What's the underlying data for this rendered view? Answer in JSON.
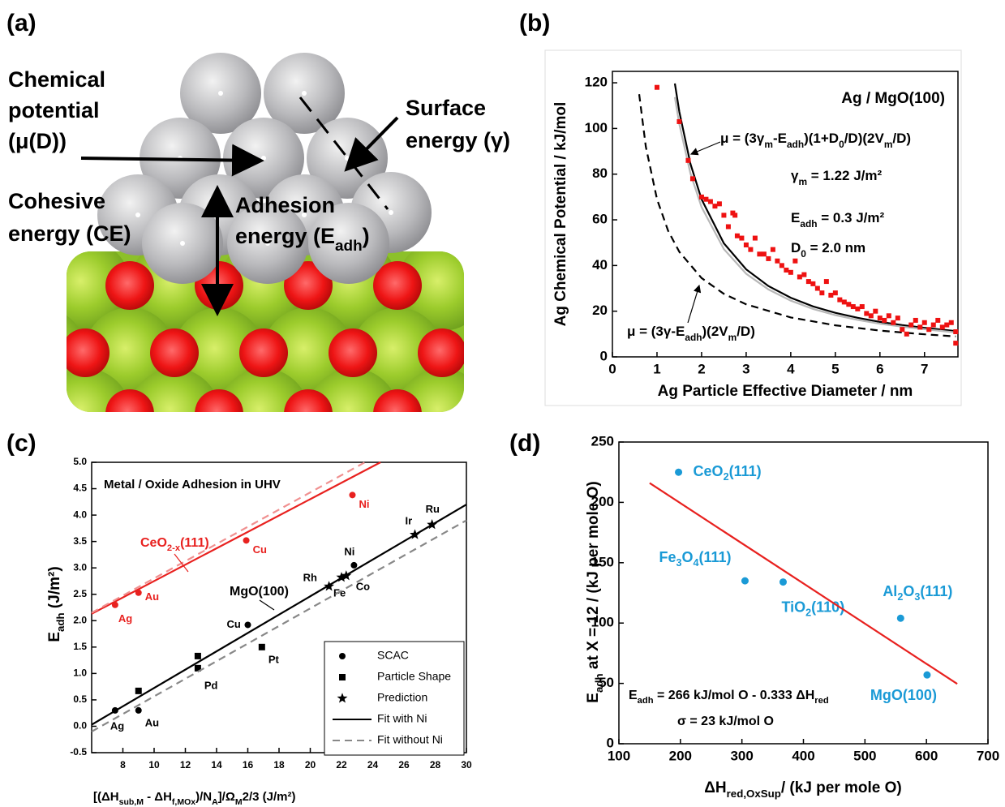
{
  "diagram": {
    "label": "(a)",
    "chemical": [
      "Chemical",
      "potential",
      "(μ(D))"
    ],
    "surface": [
      "Surface",
      "energy (γ)"
    ],
    "cohesive": [
      "Cohesive",
      "energy (CE)"
    ],
    "adhesion": [
      "Adhesion",
      [
        "energy (E",
        "adh",
        ")"
      ]
    ]
  },
  "chart_data": [
    {
      "type": "scatter",
      "label": "(b)",
      "title": "Ag / MgO(100)",
      "xlabel": "Ag Particle Effective Diameter / nm",
      "ylabel": "Ag Chemical Potential / kJ/mol",
      "xlim": [
        0,
        7.75
      ],
      "ylim": [
        0,
        125
      ],
      "xticks": [
        0,
        1,
        2,
        3,
        4,
        5,
        6,
        7
      ],
      "yticks": [
        0,
        20,
        40,
        60,
        80,
        100,
        120
      ],
      "annotations": [
        [
          "μ = (3γ",
          "m",
          "-E",
          "adh",
          ")(1+D",
          "0",
          "/D)(2V",
          "m",
          "/D)"
        ],
        [
          "γ",
          "m",
          " = 1.22 J/m²"
        ],
        [
          "E",
          "adh",
          " = 0.3 J/m²"
        ],
        [
          "D",
          "0",
          " = 2.0 nm"
        ],
        [
          "μ = (3γ-E",
          "adh",
          ")(2V",
          "m",
          "/D)"
        ]
      ],
      "series": [
        {
          "type": "line",
          "color": "#000000",
          "line_style": "solid",
          "x": [
            1.4,
            1.5,
            1.75,
            2,
            2.5,
            3,
            3.5,
            4,
            4.5,
            5,
            5.5,
            6,
            6.5,
            7,
            7.7
          ],
          "values": [
            119.7,
            107.3,
            84.5,
            69,
            49.7,
            38.3,
            31,
            25.9,
            22.1,
            19.3,
            17.1,
            15.3,
            13.9,
            12.7,
            11.3
          ]
        },
        {
          "type": "line",
          "color": "#b8b8b8",
          "line_style": "solid",
          "x": [
            1.4,
            1.5,
            1.75,
            2,
            2.5,
            3,
            3.5,
            4,
            4.5,
            5,
            5.5,
            6,
            6.5,
            7,
            7.7
          ],
          "values": [
            113.7,
            101.9,
            80.3,
            65.6,
            47.2,
            36.4,
            29.5,
            24.6,
            21,
            18.3,
            16.2,
            14.5,
            13.2,
            12.1,
            10.7
          ]
        },
        {
          "type": "line",
          "color": "#000000",
          "line_style": "dashed",
          "x": [
            0.6,
            0.75,
            1,
            1.25,
            1.5,
            2,
            2.5,
            3,
            4,
            5,
            6,
            7,
            7.7
          ],
          "values": [
            115,
            92,
            69,
            55.2,
            46,
            34.5,
            27.6,
            23,
            17.25,
            13.8,
            11.5,
            9.86,
            8.96
          ]
        },
        {
          "type": "scatter",
          "color": "#ee1111",
          "marker": "square",
          "x": [
            1.0,
            1.5,
            1.7,
            1.8,
            2.0,
            2.1,
            2.2,
            2.3,
            2.4,
            2.5,
            2.6,
            2.7,
            2.75,
            2.8,
            2.9,
            3.0,
            3.1,
            3.2,
            3.3,
            3.4,
            3.5,
            3.6,
            3.7,
            3.8,
            3.9,
            4.0,
            4.1,
            4.2,
            4.3,
            4.4,
            4.5,
            4.6,
            4.7,
            4.8,
            4.9,
            5.0,
            5.1,
            5.2,
            5.3,
            5.4,
            5.5,
            5.6,
            5.7,
            5.8,
            5.9,
            6.0,
            6.1,
            6.2,
            6.3,
            6.4,
            6.5,
            6.6,
            6.7,
            6.8,
            6.9,
            7.0,
            7.1,
            7.2,
            7.3,
            7.4,
            7.5,
            7.6,
            7.7,
            7.7
          ],
          "values": [
            118,
            103,
            86,
            78,
            70,
            69,
            68,
            66,
            67,
            62,
            57,
            63,
            62,
            53,
            52,
            49,
            47,
            52,
            45,
            45,
            43,
            47,
            42,
            40,
            38,
            37,
            42,
            35,
            36,
            33,
            32,
            30,
            28,
            33,
            27,
            28,
            25,
            24,
            23,
            22,
            21,
            22,
            19,
            18,
            20,
            17,
            16,
            18,
            15,
            17,
            12,
            10,
            14,
            16,
            13,
            15,
            12,
            14,
            16,
            13,
            14,
            15,
            6,
            11
          ]
        }
      ]
    },
    {
      "type": "scatter",
      "label": "(c)",
      "title": "Metal / Oxide Adhesion in UHV",
      "xlabel": [
        "[(ΔH",
        "sub,M",
        " - ΔH",
        "f,MOx",
        ")/N",
        "A",
        "]/Ω",
        "M",
        "2/3   (J/m²)"
      ],
      "ylabel": [
        "E",
        "adh",
        "   (J/m²)"
      ],
      "xlim": [
        6,
        30
      ],
      "ylim": [
        -0.5,
        5.0
      ],
      "xticks": [
        8,
        10,
        12,
        14,
        16,
        18,
        20,
        22,
        24,
        26,
        28,
        30
      ],
      "yticks": [
        -0.5,
        {
          "value": 0,
          "label": "0.0"
        },
        0.5,
        {
          "value": 1,
          "label": "1.0"
        },
        1.5,
        {
          "value": 2,
          "label": "2.0"
        },
        2.5,
        {
          "value": 3,
          "label": "3.0"
        },
        3.5,
        {
          "value": 4,
          "label": "4.0"
        },
        4.5,
        {
          "value": 5,
          "label": "5.0"
        }
      ],
      "annotations": [
        [
          "CeO",
          "2-x",
          "(111)"
        ],
        "MgO(100)"
      ],
      "legend": "lower right",
      "series": [
        {
          "type": "scatter",
          "name": "SCAC",
          "color": "#000000",
          "marker": "circle",
          "x": [
            7.5,
            9,
            16,
            22.8
          ],
          "values": [
            0.3,
            0.3,
            1.92,
            3.05
          ],
          "labels": [
            "Ag",
            "Au",
            "Cu",
            "Ni"
          ]
        },
        {
          "type": "scatter",
          "name": "Particle Shape",
          "color": "#000000",
          "marker": "square",
          "x": [
            9,
            12.8,
            12.8,
            16.9
          ],
          "values": [
            0.67,
            1.33,
            1.1,
            1.5
          ],
          "labels": [
            null,
            null,
            "Pd",
            "Pt"
          ]
        },
        {
          "type": "scatter",
          "name": "Prediction",
          "color": "#000000",
          "marker": "star",
          "x": [
            21.2,
            22,
            22.3,
            26.7,
            27.8
          ],
          "values": [
            2.65,
            2.82,
            2.85,
            3.63,
            3.82
          ],
          "labels": [
            "Rh",
            "Fe",
            "Co",
            "Ir",
            "Ru"
          ]
        },
        {
          "type": "line",
          "name": "Fit with Ni",
          "color": "#000000",
          "line_style": "solid",
          "x": [
            6,
            30
          ],
          "values": [
            0.03,
            4.2
          ]
        },
        {
          "type": "line",
          "name": "Fit without Ni",
          "color": "#888888",
          "line_style": "dashed",
          "x": [
            6,
            30
          ],
          "values": [
            -0.1,
            3.9
          ]
        },
        {
          "type": "scatter",
          "color": "#e8211f",
          "marker": "circle",
          "x": [
            7.5,
            9,
            15.9,
            22.7
          ],
          "values": [
            2.3,
            2.53,
            3.52,
            4.38
          ],
          "labels": [
            "Ag",
            "Au",
            "Cu",
            "Ni"
          ]
        },
        {
          "type": "line",
          "color": "#e8211f",
          "line_style": "solid",
          "x": [
            6,
            24.5
          ],
          "values": [
            2.13,
            5.0
          ]
        },
        {
          "type": "line",
          "color": "#f09090",
          "line_style": "dashed",
          "x": [
            6,
            23.5
          ],
          "values": [
            2.15,
            5.0
          ]
        }
      ]
    },
    {
      "type": "scatter",
      "label": "(d)",
      "xlabel": [
        "ΔH",
        "red,OxSup",
        "/ (kJ per mole O)"
      ],
      "ylabel": [
        "E",
        "adh",
        " at X = 12 / (kJ per mole O)"
      ],
      "xlim": [
        100,
        700
      ],
      "ylim": [
        0,
        250
      ],
      "xticks": [
        100,
        200,
        300,
        400,
        500,
        600,
        700
      ],
      "yticks": [
        0,
        50,
        100,
        150,
        200,
        250
      ],
      "annotations": [
        [
          "E",
          "adh",
          " = 266 kJ/mol O - 0.333 ΔH",
          "red"
        ],
        "σ = 23 kJ/mol O"
      ],
      "series": [
        {
          "type": "scatter",
          "color": "#1a9ad6",
          "marker": "circle",
          "x": [
            197,
            305,
            367,
            558,
            601
          ],
          "values": [
            225,
            135,
            134,
            104,
            57
          ],
          "labels": [
            [
              "CeO",
              "2",
              "(111)"
            ],
            [
              "Fe",
              "3",
              "O",
              "4",
              "(111)"
            ],
            [
              "TiO",
              "2",
              "(110)"
            ],
            [
              "Al",
              "2",
              "O",
              "3",
              "(111)"
            ],
            "MgO(100)"
          ]
        },
        {
          "type": "line",
          "color": "#e8211f",
          "line_style": "solid",
          "x": [
            150,
            650
          ],
          "values": [
            216,
            49.6
          ]
        }
      ]
    }
  ]
}
